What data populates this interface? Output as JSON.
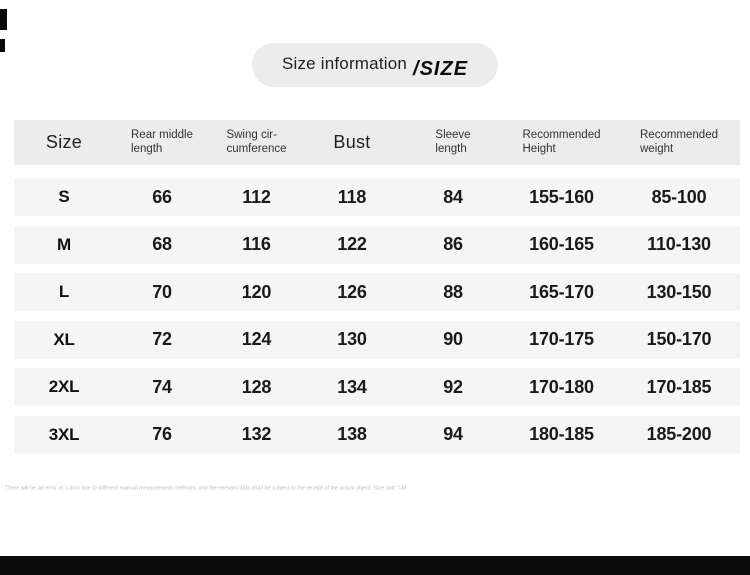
{
  "badge": {
    "title": "Size information",
    "suffix": "/SIZE"
  },
  "table": {
    "columns": [
      {
        "line1": "Size",
        "line2": ""
      },
      {
        "line1": "Rear middle",
        "line2": "length"
      },
      {
        "line1": "Swing cir-",
        "line2": "cumference"
      },
      {
        "line1": "Bust",
        "line2": ""
      },
      {
        "line1": "Sleeve",
        "line2": "length"
      },
      {
        "line1": "Recommended",
        "line2": "Height"
      },
      {
        "line1": "Recommended",
        "line2": "weight"
      }
    ],
    "rows": [
      {
        "size": "S",
        "rear_middle_length": "66",
        "swing_circumference": "112",
        "bust": "118",
        "sleeve_length": "84",
        "recommended_height": "155-160",
        "recommended_weight": "85-100"
      },
      {
        "size": "M",
        "rear_middle_length": "68",
        "swing_circumference": "116",
        "bust": "122",
        "sleeve_length": "86",
        "recommended_height": "160-165",
        "recommended_weight": "110-130"
      },
      {
        "size": "L",
        "rear_middle_length": "70",
        "swing_circumference": "120",
        "bust": "126",
        "sleeve_length": "88",
        "recommended_height": "165-170",
        "recommended_weight": "130-150"
      },
      {
        "size": "XL",
        "rear_middle_length": "72",
        "swing_circumference": "124",
        "bust": "130",
        "sleeve_length": "90",
        "recommended_height": "170-175",
        "recommended_weight": "150-170"
      },
      {
        "size": "2XL",
        "rear_middle_length": "74",
        "swing_circumference": "128",
        "bust": "134",
        "sleeve_length": "92",
        "recommended_height": "170-180",
        "recommended_weight": "170-185"
      },
      {
        "size": "3XL",
        "rear_middle_length": "76",
        "swing_circumference": "132",
        "bust": "138",
        "sleeve_length": "94",
        "recommended_height": "180-185",
        "recommended_weight": "185-200"
      }
    ]
  },
  "footnote": "There will be an error of 1-3cm due to different manual measurement methods, and the relevant data shall be subject to the receipt of the actual object. Size unit: CM.",
  "colors": {
    "header_bg": "#ececec",
    "row_bg": "#f5f5f5",
    "badge_bg": "#ececec",
    "footnote_text": "#bcbcbc",
    "bottom_bar": "#0b0b0b"
  }
}
